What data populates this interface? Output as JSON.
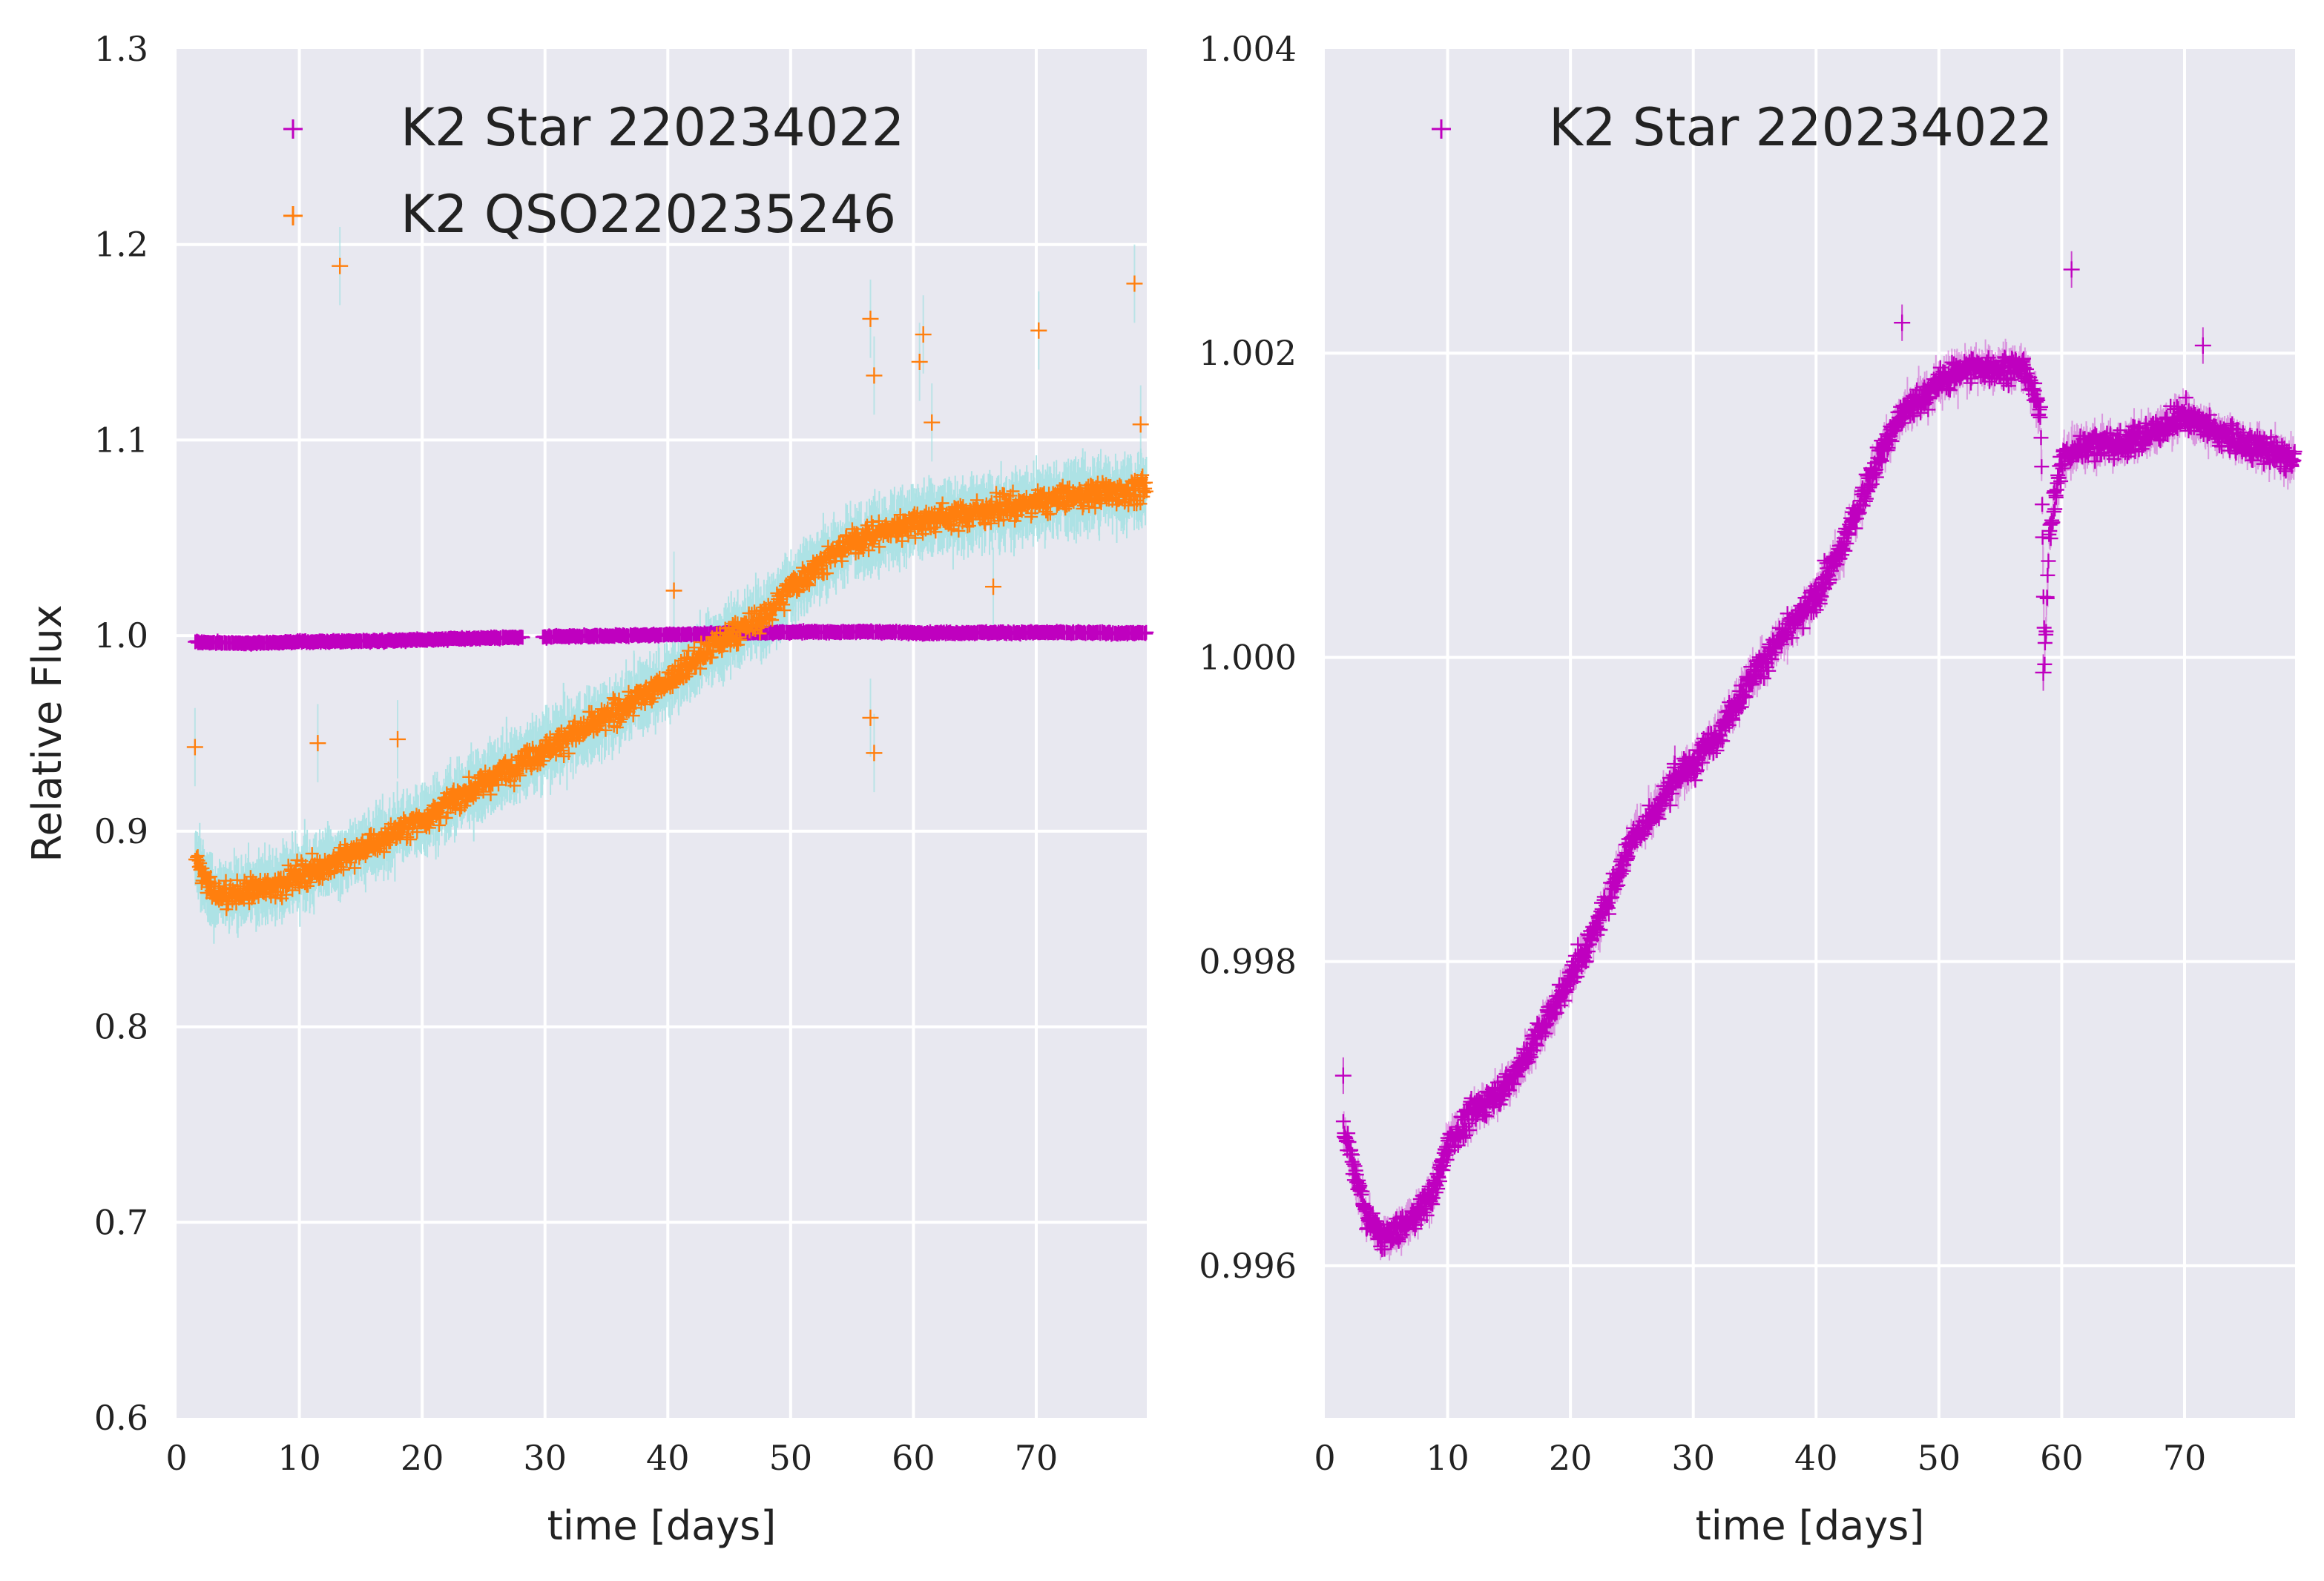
{
  "chart_data": [
    {
      "type": "scatter",
      "xlabel": "time [days]",
      "ylabel": "Relative Flux",
      "xlim": [
        0,
        79
      ],
      "ylim": [
        0.6,
        1.3
      ],
      "x_ticks": [
        "0",
        "10",
        "20",
        "30",
        "40",
        "50",
        "60",
        "70"
      ],
      "y_ticks": [
        "0.6",
        "0.7",
        "0.8",
        "0.9",
        "1.0",
        "1.1",
        "1.2",
        "1.3"
      ],
      "grid": true,
      "legend_position": "upper-left",
      "series": [
        {
          "name": "K2 Star 220234022",
          "marker": "+",
          "color": "#bf00bf",
          "x": [
            1.5,
            3,
            5,
            8,
            10,
            15,
            20,
            25,
            28,
            30,
            35,
            40,
            45,
            50,
            55,
            57,
            60,
            65,
            70,
            75,
            79
          ],
          "y": [
            0.9969,
            0.9963,
            0.9962,
            0.9965,
            0.9968,
            0.9972,
            0.9979,
            0.9988,
            0.9991,
            0.9993,
            0.9999,
            1.0004,
            1.0013,
            1.0018,
            1.0019,
            1.0019,
            1.0014,
            1.0015,
            1.0016,
            1.0014,
            1.0013
          ]
        },
        {
          "name": "K2 QSO220235246",
          "marker": "+",
          "color": "#ff7f0e",
          "error_color": "#a6e1e3",
          "x": [
            1.5,
            3,
            5,
            8,
            10,
            12,
            15,
            20,
            25,
            30,
            35,
            40,
            45,
            48,
            50,
            52,
            55,
            60,
            65,
            70,
            75,
            79
          ],
          "y": [
            0.885,
            0.868,
            0.868,
            0.872,
            0.878,
            0.882,
            0.89,
            0.906,
            0.925,
            0.942,
            0.958,
            0.977,
            1.0,
            1.01,
            1.025,
            1.035,
            1.048,
            1.058,
            1.063,
            1.068,
            1.073,
            1.074
          ],
          "outliers": [
            {
              "x": 1.5,
              "y": 0.943
            },
            {
              "x": 13.3,
              "y": 1.189
            },
            {
              "x": 56.5,
              "y": 1.162
            },
            {
              "x": 56.8,
              "y": 1.133
            },
            {
              "x": 56.5,
              "y": 0.958
            },
            {
              "x": 56.8,
              "y": 0.94
            },
            {
              "x": 60.8,
              "y": 1.154
            },
            {
              "x": 60.5,
              "y": 1.14
            },
            {
              "x": 61.5,
              "y": 1.109
            },
            {
              "x": 70.2,
              "y": 1.156
            },
            {
              "x": 78.0,
              "y": 1.18
            },
            {
              "x": 78.5,
              "y": 1.108
            },
            {
              "x": 18.0,
              "y": 0.947
            },
            {
              "x": 11.5,
              "y": 0.945
            },
            {
              "x": 40.5,
              "y": 1.023
            },
            {
              "x": 66.5,
              "y": 1.025
            }
          ]
        }
      ]
    },
    {
      "type": "scatter",
      "xlabel": "time [days]",
      "ylabel": "",
      "xlim": [
        0,
        79
      ],
      "ylim": [
        0.995,
        1.004
      ],
      "x_ticks": [
        "0",
        "10",
        "20",
        "30",
        "40",
        "50",
        "60",
        "70"
      ],
      "y_ticks": [
        "0.996",
        "0.998",
        "1.000",
        "1.002",
        "1.004"
      ],
      "grid": true,
      "legend_position": "upper-left",
      "series": [
        {
          "name": "K2 Star 220234022",
          "marker": "+",
          "color": "#bf00bf",
          "x": [
            1.5,
            2.5,
            3.5,
            4.5,
            5.5,
            7,
            9,
            10,
            12,
            15,
            18,
            20,
            22,
            25,
            27,
            28.5,
            30,
            32,
            35,
            38,
            40,
            42,
            45,
            47,
            50,
            52,
            55,
            57,
            58.3,
            58.6,
            59,
            60,
            62,
            65,
            68,
            70,
            72,
            75,
            79
          ],
          "y": [
            0.9969,
            0.9966,
            0.9963,
            0.9962,
            0.9962,
            0.9963,
            0.9965,
            0.9968,
            0.997,
            0.9972,
            0.9976,
            0.9979,
            0.9982,
            0.9988,
            0.999,
            0.9992,
            0.9993,
            0.9995,
            0.9999,
            1.0002,
            1.0004,
            1.0007,
            1.0013,
            1.0016,
            1.0018,
            1.0019,
            1.0019,
            1.0019,
            1.0016,
            1.0,
            1.0008,
            1.0013,
            1.0014,
            1.0014,
            1.0015,
            1.0016,
            1.0015,
            1.0014,
            1.0013
          ],
          "outliers": [
            {
              "x": 1.5,
              "y": 0.99725
            },
            {
              "x": 60.8,
              "y": 1.00255
            },
            {
              "x": 71.5,
              "y": 1.00205
            },
            {
              "x": 58.5,
              "y": 0.9999
            },
            {
              "x": 28.5,
              "y": 0.9993
            },
            {
              "x": 47.0,
              "y": 1.0022
            }
          ]
        }
      ]
    }
  ]
}
